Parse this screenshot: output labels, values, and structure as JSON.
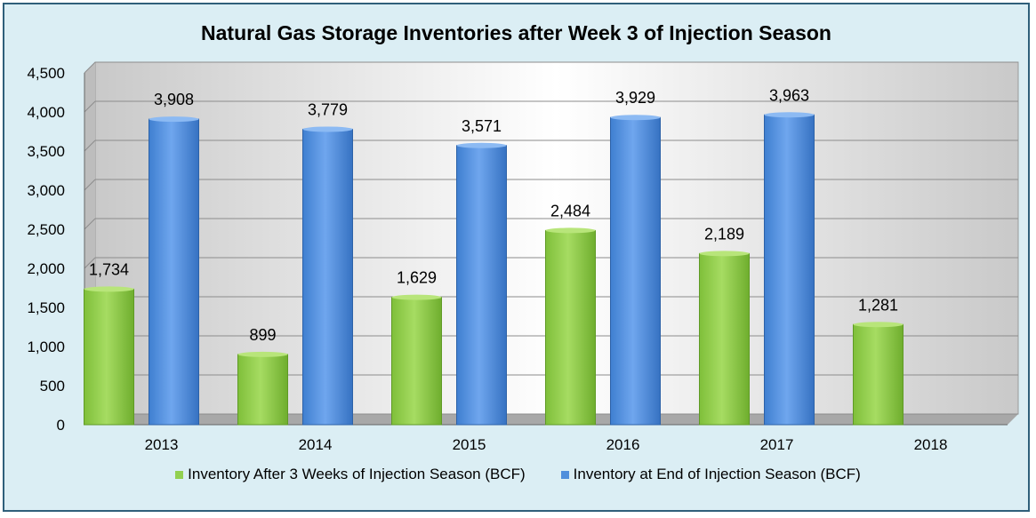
{
  "chart_data": {
    "type": "bar",
    "title": "Natural Gas Storage Inventories after Week 3 of Injection Season",
    "categories": [
      "2013",
      "2014",
      "2015",
      "2016",
      "2017",
      "2018"
    ],
    "series": [
      {
        "name": "Inventory After 3 Weeks of Injection Season (BCF)",
        "color": "#92d050",
        "values": [
          1734,
          899,
          1629,
          2484,
          2189,
          1281
        ],
        "labels": [
          "1,734",
          "899",
          "1,629",
          "2,484",
          "2,189",
          "1,281"
        ]
      },
      {
        "name": "Inventory at End of Injection Season (BCF)",
        "color": "#4f8fdc",
        "values": [
          3908,
          3779,
          3571,
          3929,
          3963,
          null
        ],
        "labels": [
          "3,908",
          "3,779",
          "3,571",
          "3,929",
          "3,963",
          ""
        ]
      }
    ],
    "yticks": [
      "0",
      "500",
      "1,000",
      "1,500",
      "2,000",
      "2,500",
      "3,000",
      "3,500",
      "4,000",
      "4,500"
    ],
    "ylim": [
      0,
      4500
    ],
    "grid": true,
    "legend_position": "bottom"
  }
}
